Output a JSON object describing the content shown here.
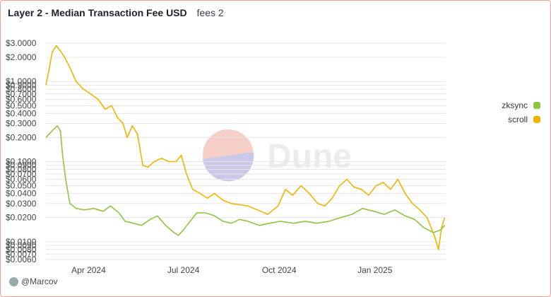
{
  "header": {
    "title": "Layer 2 - Median Transaction Fee USD",
    "subtitle": "fees 2"
  },
  "author": "@Marcov",
  "watermark": "Dune",
  "colors": {
    "zksync": "#8dc63f",
    "scroll": "#f0b400",
    "grid": "#e6e6e6",
    "tick": "#444444"
  },
  "chart_data": {
    "type": "line",
    "title": "Layer 2 - Median Transaction Fee USD",
    "y_scale": "log",
    "ylim": [
      0.006,
      4.0
    ],
    "y_ticks": [
      0.006,
      0.007,
      0.008,
      0.009,
      0.01,
      0.02,
      0.03,
      0.04,
      0.05,
      0.06,
      0.07,
      0.08,
      0.09,
      0.1,
      0.2,
      0.3,
      0.4,
      0.5,
      0.6,
      0.7,
      0.8,
      0.9,
      1.0,
      2.0,
      3.0
    ],
    "y_tick_labels": [
      "$0.0060",
      "$0.0070",
      "$0.0080",
      "$0.0090",
      "$0.0100",
      "$0.0200",
      "$0.0300",
      "$0.0400",
      "$0.0500",
      "$0.0600",
      "$0.0700",
      "$0.0800",
      "$0.0900",
      "$0.1000",
      "$0.2000",
      "$0.3000",
      "$0.4000",
      "$0.5000",
      "$0.6000",
      "$0.7000",
      "$0.8000",
      "$0.9000",
      "$1.0000",
      "$2.0000",
      "$3.0000"
    ],
    "xlim": [
      "2024-02-20",
      "2025-03-10"
    ],
    "x_ticks": [
      "2024-04-01",
      "2024-07-01",
      "2024-10-01",
      "2025-01-01"
    ],
    "x_tick_labels": [
      "Apr 2024",
      "Jul 2024",
      "Oct 2024",
      "Jan 2025"
    ],
    "legend": "right",
    "series": [
      {
        "name": "zksync",
        "color": "#8dc63f",
        "points": [
          [
            "2024-02-20",
            0.2
          ],
          [
            "2024-02-23",
            0.22
          ],
          [
            "2024-02-27",
            0.25
          ],
          [
            "2024-03-02",
            0.28
          ],
          [
            "2024-03-05",
            0.24
          ],
          [
            "2024-03-07",
            0.12
          ],
          [
            "2024-03-10",
            0.06
          ],
          [
            "2024-03-14",
            0.03
          ],
          [
            "2024-03-20",
            0.026
          ],
          [
            "2024-03-28",
            0.025
          ],
          [
            "2024-04-06",
            0.026
          ],
          [
            "2024-04-15",
            0.024
          ],
          [
            "2024-04-22",
            0.028
          ],
          [
            "2024-04-30",
            0.023
          ],
          [
            "2024-05-06",
            0.018
          ],
          [
            "2024-05-14",
            0.017
          ],
          [
            "2024-05-22",
            0.016
          ],
          [
            "2024-05-30",
            0.019
          ],
          [
            "2024-06-06",
            0.021
          ],
          [
            "2024-06-14",
            0.016
          ],
          [
            "2024-06-22",
            0.013
          ],
          [
            "2024-06-26",
            0.012
          ],
          [
            "2024-07-01",
            0.014
          ],
          [
            "2024-07-06",
            0.017
          ],
          [
            "2024-07-14",
            0.023
          ],
          [
            "2024-07-22",
            0.023
          ],
          [
            "2024-07-31",
            0.021
          ],
          [
            "2024-08-08",
            0.018
          ],
          [
            "2024-08-16",
            0.017
          ],
          [
            "2024-08-24",
            0.019
          ],
          [
            "2024-09-01",
            0.018
          ],
          [
            "2024-09-12",
            0.016
          ],
          [
            "2024-09-22",
            0.017
          ],
          [
            "2024-10-02",
            0.018
          ],
          [
            "2024-10-15",
            0.017
          ],
          [
            "2024-10-26",
            0.018
          ],
          [
            "2024-11-06",
            0.017
          ],
          [
            "2024-11-18",
            0.018
          ],
          [
            "2024-11-29",
            0.02
          ],
          [
            "2024-12-10",
            0.022
          ],
          [
            "2024-12-20",
            0.026
          ],
          [
            "2024-12-31",
            0.024
          ],
          [
            "2025-01-10",
            0.022
          ],
          [
            "2025-01-20",
            0.025
          ],
          [
            "2025-01-30",
            0.021
          ],
          [
            "2025-02-08",
            0.019
          ],
          [
            "2025-02-17",
            0.015
          ],
          [
            "2025-02-26",
            0.013
          ],
          [
            "2025-03-05",
            0.014
          ],
          [
            "2025-03-09",
            0.016
          ]
        ]
      },
      {
        "name": "scroll",
        "color": "#f0b400",
        "points": [
          [
            "2024-02-20",
            0.9
          ],
          [
            "2024-02-23",
            1.4
          ],
          [
            "2024-02-26",
            2.3
          ],
          [
            "2024-03-01",
            2.8
          ],
          [
            "2024-03-05",
            2.4
          ],
          [
            "2024-03-09",
            2.0
          ],
          [
            "2024-03-14",
            1.5
          ],
          [
            "2024-03-20",
            1.0
          ],
          [
            "2024-03-27",
            0.8
          ],
          [
            "2024-04-03",
            0.7
          ],
          [
            "2024-04-10",
            0.6
          ],
          [
            "2024-04-17",
            0.45
          ],
          [
            "2024-04-23",
            0.5
          ],
          [
            "2024-04-29",
            0.35
          ],
          [
            "2024-05-04",
            0.3
          ],
          [
            "2024-05-08",
            0.2
          ],
          [
            "2024-05-13",
            0.28
          ],
          [
            "2024-05-18",
            0.22
          ],
          [
            "2024-05-23",
            0.09
          ],
          [
            "2024-05-28",
            0.085
          ],
          [
            "2024-06-03",
            0.1
          ],
          [
            "2024-06-10",
            0.11
          ],
          [
            "2024-06-17",
            0.1
          ],
          [
            "2024-06-24",
            0.1
          ],
          [
            "2024-06-29",
            0.12
          ],
          [
            "2024-07-04",
            0.07
          ],
          [
            "2024-07-10",
            0.045
          ],
          [
            "2024-07-17",
            0.04
          ],
          [
            "2024-07-24",
            0.035
          ],
          [
            "2024-07-31",
            0.04
          ],
          [
            "2024-08-08",
            0.033
          ],
          [
            "2024-08-16",
            0.03
          ],
          [
            "2024-08-24",
            0.029
          ],
          [
            "2024-09-01",
            0.028
          ],
          [
            "2024-09-10",
            0.025
          ],
          [
            "2024-09-20",
            0.022
          ],
          [
            "2024-09-30",
            0.028
          ],
          [
            "2024-10-07",
            0.045
          ],
          [
            "2024-10-14",
            0.038
          ],
          [
            "2024-10-22",
            0.05
          ],
          [
            "2024-10-30",
            0.04
          ],
          [
            "2024-11-07",
            0.03
          ],
          [
            "2024-11-14",
            0.028
          ],
          [
            "2024-11-21",
            0.035
          ],
          [
            "2024-11-28",
            0.05
          ],
          [
            "2024-12-05",
            0.06
          ],
          [
            "2024-12-12",
            0.048
          ],
          [
            "2024-12-19",
            0.045
          ],
          [
            "2024-12-26",
            0.038
          ],
          [
            "2025-01-02",
            0.05
          ],
          [
            "2025-01-09",
            0.055
          ],
          [
            "2025-01-16",
            0.045
          ],
          [
            "2025-01-23",
            0.06
          ],
          [
            "2025-01-30",
            0.04
          ],
          [
            "2025-02-06",
            0.03
          ],
          [
            "2025-02-13",
            0.025
          ],
          [
            "2025-02-20",
            0.02
          ],
          [
            "2025-02-27",
            0.012
          ],
          [
            "2025-03-03",
            0.008
          ],
          [
            "2025-03-06",
            0.015
          ],
          [
            "2025-03-09",
            0.02
          ]
        ]
      }
    ]
  }
}
